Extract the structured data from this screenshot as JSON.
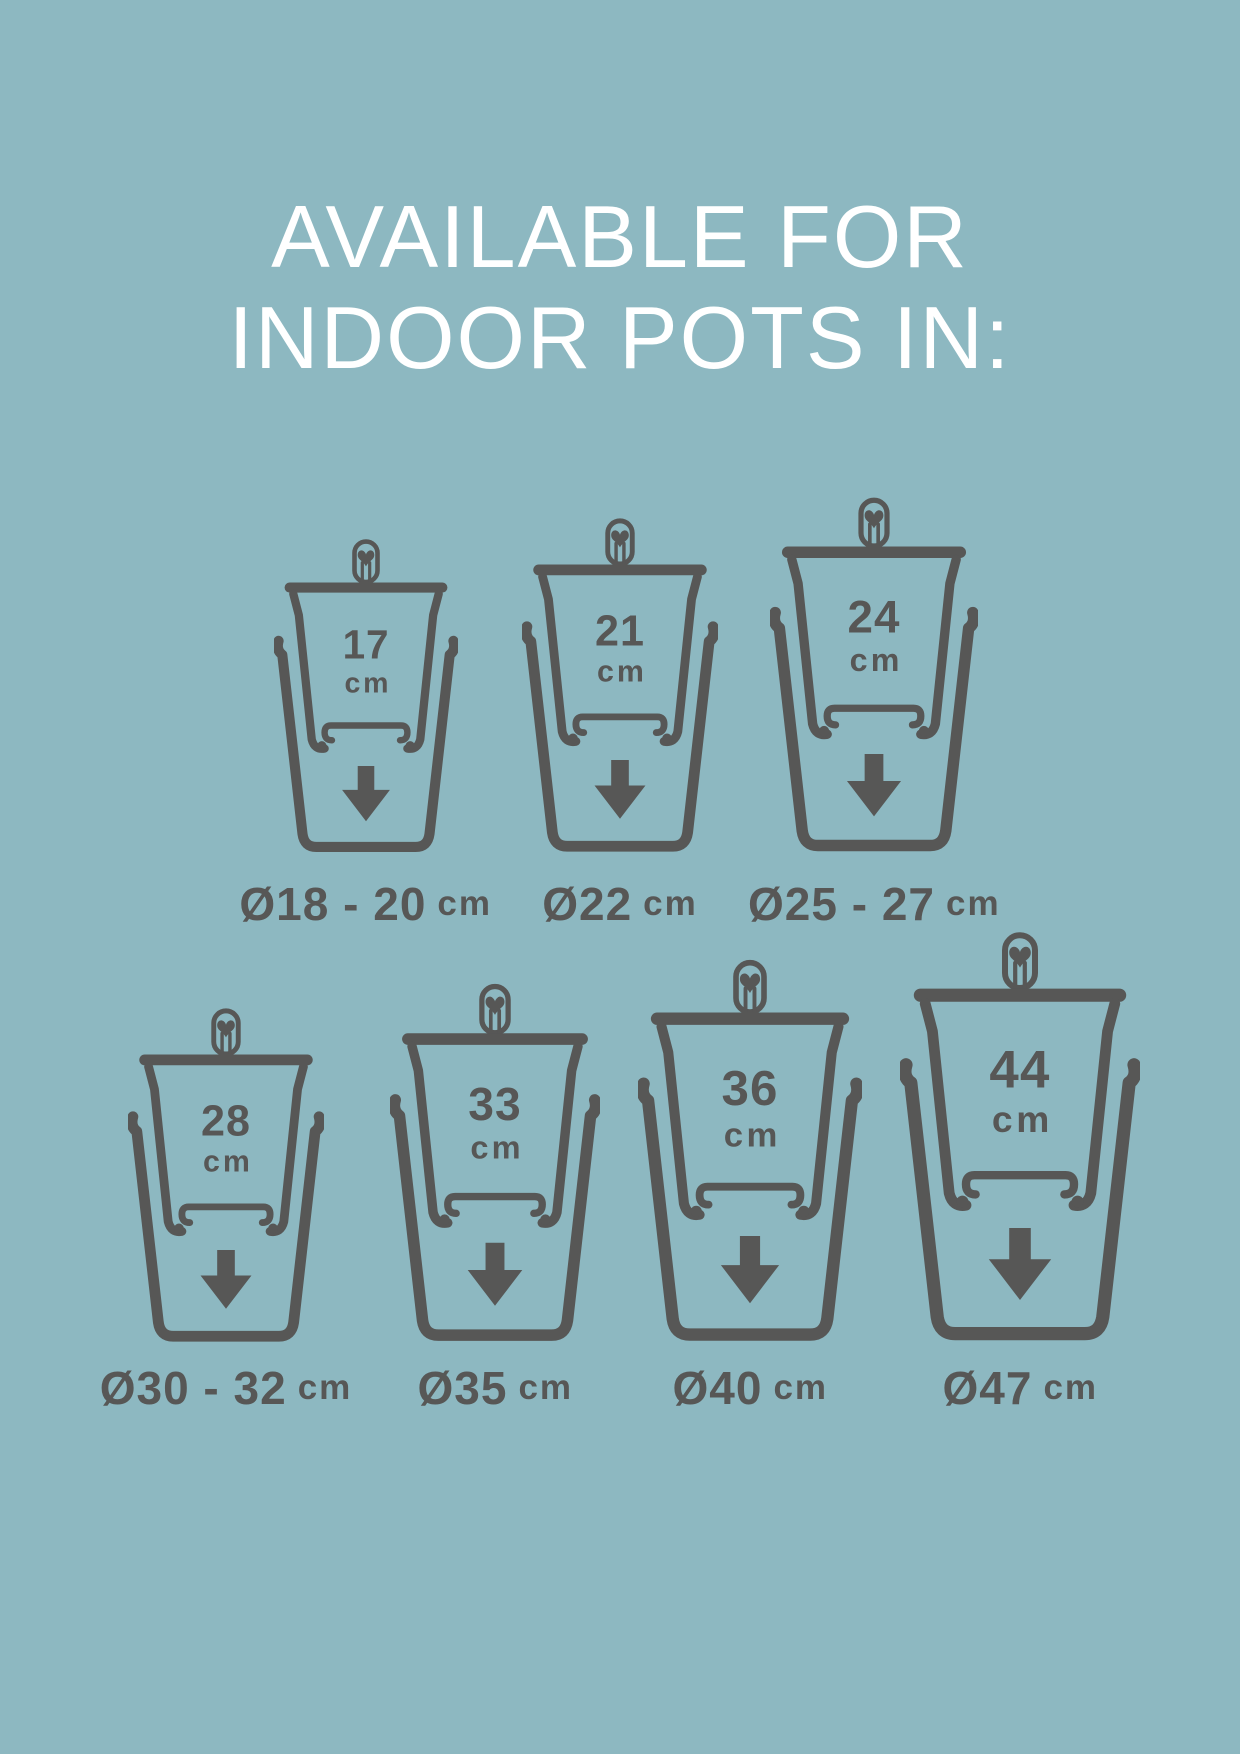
{
  "title": {
    "line1": "AVAILABLE FOR",
    "line2": "INDOOR POTS IN:"
  },
  "colors": {
    "background": "#8db8c1",
    "ink": "#575756",
    "title_text": "#ffffff"
  },
  "pot_rows": [
    {
      "pots": [
        {
          "size": "17",
          "size_unit": "cm",
          "pot_diameter": "Ø18 - 20",
          "pot_diameter_unit": "cm",
          "scale": 0.92
        },
        {
          "size": "21",
          "size_unit": "cm",
          "pot_diameter": "Ø22",
          "pot_diameter_unit": "cm",
          "scale": 0.98
        },
        {
          "size": "24",
          "size_unit": "cm",
          "pot_diameter": "Ø25 - 27",
          "pot_diameter_unit": "cm",
          "scale": 1.04
        }
      ]
    },
    {
      "pots": [
        {
          "size": "28",
          "size_unit": "cm",
          "pot_diameter": "Ø30 - 32",
          "pot_diameter_unit": "cm",
          "scale": 0.98
        },
        {
          "size": "33",
          "size_unit": "cm",
          "pot_diameter": "Ø35",
          "pot_diameter_unit": "cm",
          "scale": 1.05
        },
        {
          "size": "36",
          "size_unit": "cm",
          "pot_diameter": "Ø40",
          "pot_diameter_unit": "cm",
          "scale": 1.12
        },
        {
          "size": "44",
          "size_unit": "cm",
          "pot_diameter": "Ø47",
          "pot_diameter_unit": "cm",
          "scale": 1.2
        }
      ]
    }
  ]
}
